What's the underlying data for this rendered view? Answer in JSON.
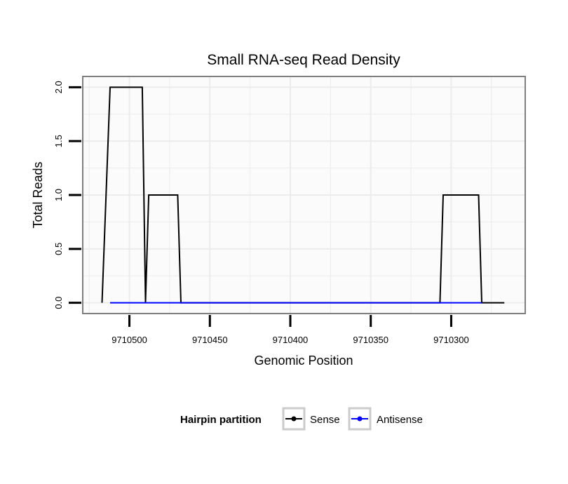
{
  "chart_data": {
    "type": "line",
    "title": "Small RNA-seq Read Density",
    "xlabel": "Genomic Position",
    "ylabel": "Total Reads",
    "x_reversed": true,
    "xlim": [
      9710529,
      9710254
    ],
    "ylim": [
      -0.1,
      2.1
    ],
    "xticks": [
      9710500,
      9710450,
      9710400,
      9710350,
      9710300
    ],
    "xtick_labels": [
      "9710500",
      "9710450",
      "9710400",
      "9710350",
      "9710300"
    ],
    "yticks": [
      0,
      0.5,
      1,
      1.5,
      2
    ],
    "ytick_labels": [
      "0.0",
      "0.5",
      "1.0",
      "1.5",
      "2.0"
    ],
    "grid": true,
    "legend": {
      "title": "Hairpin partition",
      "position": "bottom"
    },
    "series": [
      {
        "name": "Sense",
        "color": "#000000",
        "x": [
          9710517,
          9710512,
          9710492,
          9710490,
          9710488,
          9710470,
          9710468,
          9710307,
          9710305,
          9710283,
          9710281,
          9710267
        ],
        "y": [
          0,
          2,
          2,
          0,
          1,
          1,
          0,
          0,
          1,
          1,
          0,
          0
        ]
      },
      {
        "name": "Antisense",
        "color": "#0000ff",
        "x": [
          9710512,
          9710467,
          9710305,
          9710281
        ],
        "y": [
          0,
          0,
          0,
          0
        ]
      }
    ]
  }
}
